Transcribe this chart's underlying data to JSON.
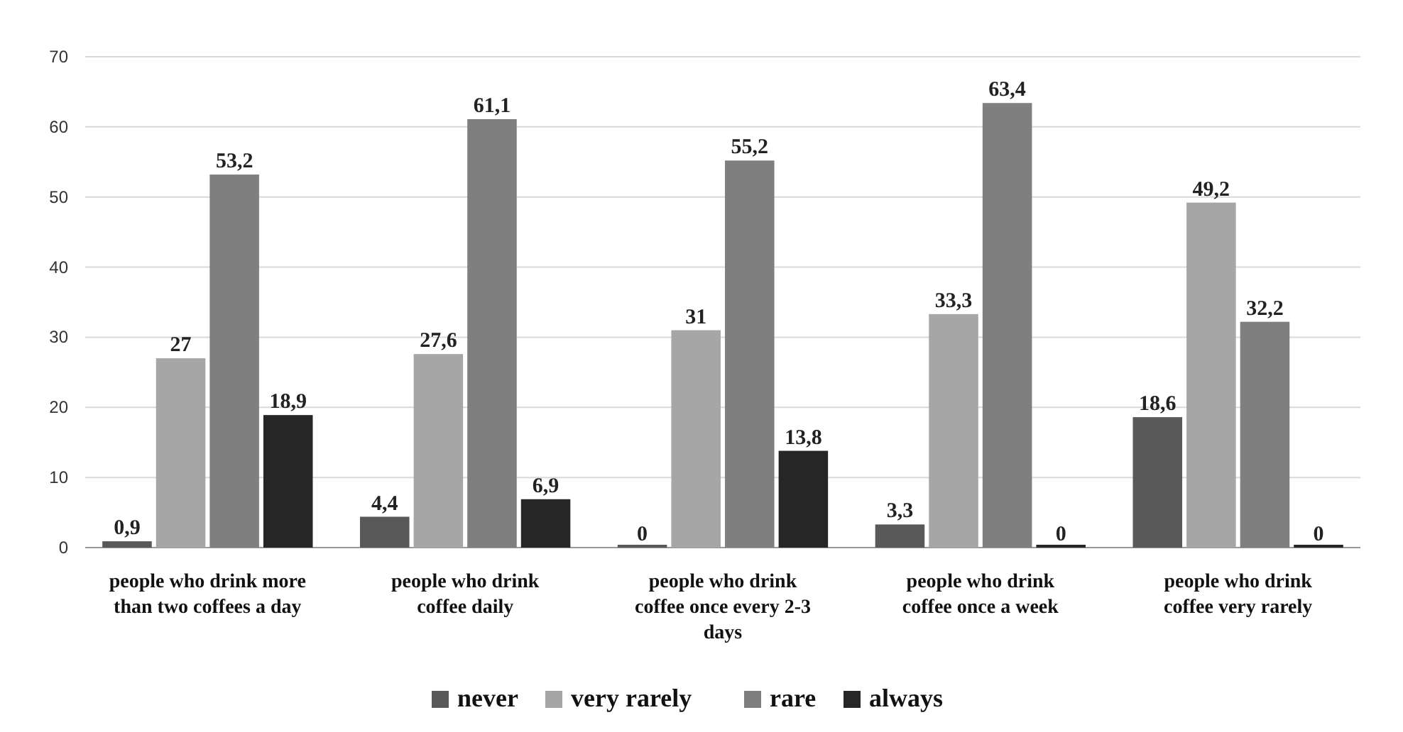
{
  "chart_data": {
    "type": "bar",
    "categories": [
      "people who drink more than two coffees a day",
      "people who drink coffee daily",
      "people who drink coffee once every 2-3 days",
      "people who drink coffee once a week",
      "people who drink coffee very rarely"
    ],
    "series": [
      {
        "name": "never",
        "color": "#595959",
        "values": [
          0.9,
          4.4,
          0,
          3.3,
          18.6
        ],
        "value_labels": [
          "0,9",
          "4,4",
          "0",
          "3,3",
          "18,6"
        ]
      },
      {
        "name": "very rarely",
        "color": "#a6a6a6",
        "values": [
          27,
          27.6,
          31,
          33.3,
          49.2
        ],
        "value_labels": [
          "27",
          "27,6",
          "31",
          "33,3",
          "49,2"
        ]
      },
      {
        "name": "rare",
        "color": "#7f7f7f",
        "values": [
          53.2,
          61.1,
          55.2,
          63.4,
          32.2
        ],
        "value_labels": [
          "53,2",
          "61,1",
          "55,2",
          "63,4",
          "32,2"
        ]
      },
      {
        "name": "always",
        "color": "#262626",
        "values": [
          18.9,
          6.9,
          13.8,
          0,
          0
        ],
        "value_labels": [
          "18,9",
          "6,9",
          "13,8",
          "0",
          "0"
        ]
      }
    ],
    "ylim": [
      0,
      70
    ],
    "yticks": [
      0,
      10,
      20,
      30,
      40,
      50,
      60,
      70
    ],
    "grid": "y",
    "legend": "bottom"
  }
}
